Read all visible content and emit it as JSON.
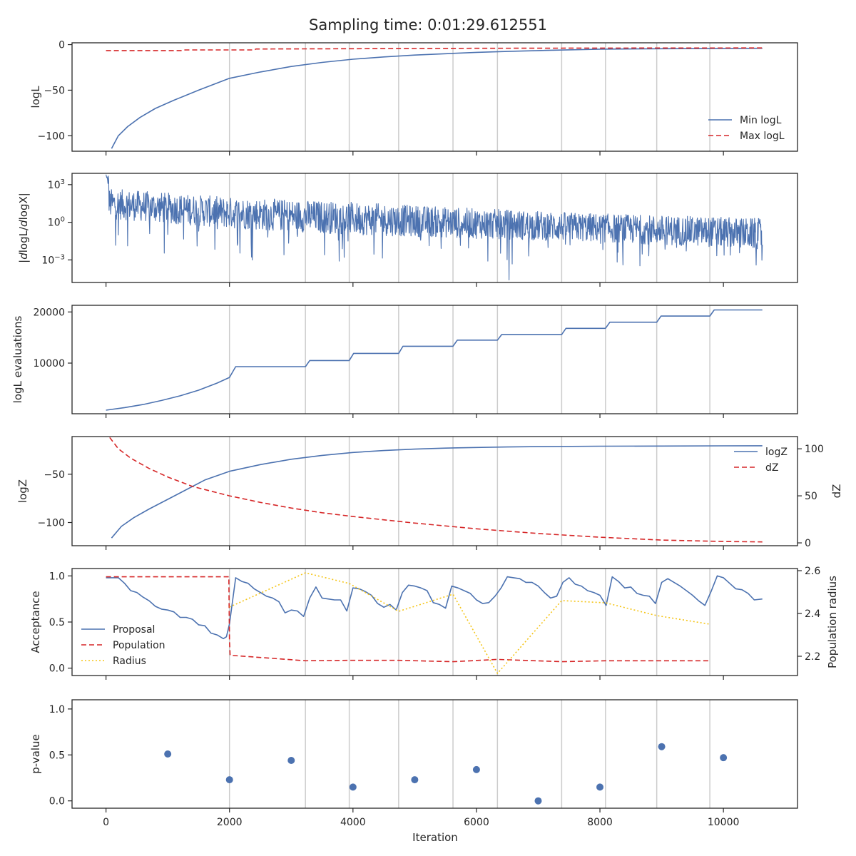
{
  "figure": {
    "title": "Sampling time: 0:01:29.612551",
    "xlabel": "Iteration",
    "xlim": [
      -550,
      11200
    ],
    "xticks": [
      0,
      2000,
      4000,
      6000,
      8000,
      10000
    ],
    "xtick_labels": [
      "0",
      "2000",
      "4000",
      "6000",
      "8000",
      "10000"
    ],
    "vlines_x": [
      2000,
      3230,
      3940,
      4740,
      5620,
      6340,
      7380,
      8090,
      8920,
      9780
    ],
    "colors": {
      "blue": "#4c72b0",
      "red": "#d62728",
      "yellow": "#f5c518",
      "grid": "#cccccc",
      "axis": "#262626"
    }
  },
  "chart_data": [
    {
      "id": "loglikelihood",
      "type": "line",
      "ylabel": "logL",
      "ylim": [
        -117,
        2
      ],
      "yticks": [
        0,
        -50,
        -100
      ],
      "ytick_labels": [
        "0",
        "−50",
        "−100"
      ],
      "legend": {
        "position": "lower-right",
        "entries": [
          "Min logL",
          "Max logL"
        ]
      },
      "series": [
        {
          "name": "Min logL",
          "style": "solid",
          "color": "blue",
          "x": [
            90,
            200,
            350,
            550,
            800,
            1100,
            1500,
            2000,
            2500,
            3000,
            3500,
            4000,
            4500,
            5000,
            5500,
            6000,
            6500,
            7000,
            8000,
            9000,
            10000,
            10630
          ],
          "y": [
            -114,
            -100,
            -90,
            -80,
            -70,
            -61,
            -50,
            -37,
            -30,
            -24,
            -19.5,
            -16,
            -13.5,
            -11.5,
            -10,
            -8.5,
            -7.5,
            -6.5,
            -5,
            -4.5,
            -4.2,
            -4
          ]
        },
        {
          "name": "Max logL",
          "style": "dashed",
          "color": "red",
          "x": [
            0,
            1250,
            1280,
            2400,
            2430,
            4000,
            6000,
            8000,
            10630
          ],
          "y": [
            -6.5,
            -6.5,
            -5.8,
            -5.8,
            -4.8,
            -4.5,
            -4,
            -3.8,
            -3.6
          ]
        }
      ]
    },
    {
      "id": "dlogl",
      "type": "line",
      "ylabel": "|dlogL/dlogX|",
      "yscale": "log",
      "ylim": [
        -4.8,
        3.9
      ],
      "yticks": [
        3,
        0,
        -3
      ],
      "ytick_labels": [
        "10^3",
        "10^0",
        "10^−3"
      ],
      "series": [
        {
          "name": "",
          "style": "noise",
          "color": "blue",
          "x": [
            0,
            2000,
            4000,
            6000,
            8000,
            10000,
            10630
          ],
          "y_upper": [
            2.7,
            2.0,
            1.6,
            1.1,
            0.7,
            0.4,
            0.3
          ],
          "y_lower": [
            0.3,
            -0.5,
            -1.0,
            -1.3,
            -1.6,
            -2.0,
            -2.2
          ],
          "y_dips": [
            -2.5,
            -3.0,
            -3.2,
            -3.4,
            -3.6,
            -3.8,
            -3.9
          ],
          "y_start_peak": 3.8,
          "y_min": -4.6
        }
      ]
    },
    {
      "id": "logl-evaluations",
      "type": "line",
      "ylabel": "logL evaluations",
      "ylim": [
        100,
        21300
      ],
      "yticks": [
        20000,
        10000
      ],
      "ytick_labels": [
        "20000",
        "10000"
      ],
      "series": [
        {
          "name": "",
          "style": "solid",
          "color": "blue",
          "x": [
            0,
            300,
            600,
            900,
            1200,
            1500,
            1800,
            2000,
            2100,
            3230,
            3300,
            3940,
            4010,
            4740,
            4810,
            5620,
            5690,
            6340,
            6410,
            7380,
            7450,
            8090,
            8160,
            8920,
            8990,
            9780,
            9850,
            10630
          ],
          "y": [
            800,
            1300,
            1900,
            2700,
            3600,
            4700,
            6100,
            7200,
            9300,
            9300,
            10500,
            10500,
            11900,
            11900,
            13300,
            13300,
            14500,
            14500,
            15600,
            15600,
            16800,
            16800,
            18000,
            18000,
            19200,
            19200,
            20400,
            20400
          ]
        }
      ]
    },
    {
      "id": "logz",
      "type": "line",
      "ylabel": "logZ",
      "y2label": "dZ",
      "ylim": [
        -124,
        -11
      ],
      "yticks": [
        -50,
        -100
      ],
      "ytick_labels": [
        "−50",
        "−100"
      ],
      "y2lim": [
        -3,
        113
      ],
      "y2ticks": [
        0,
        50,
        100
      ],
      "y2tick_labels": [
        "0",
        "50",
        "100"
      ],
      "legend": {
        "position": "top-right",
        "entries": [
          "logZ",
          "dZ"
        ]
      },
      "series": [
        {
          "name": "logZ",
          "style": "solid",
          "color": "blue",
          "axis": "left",
          "x": [
            90,
            250,
            450,
            700,
            1000,
            1300,
            1600,
            2000,
            2500,
            3000,
            3500,
            4000,
            4500,
            5000,
            5500,
            6000,
            6500,
            7000,
            8000,
            9000,
            10000,
            10630
          ],
          "y": [
            -116,
            -104,
            -95,
            -86,
            -76,
            -66,
            -56,
            -47,
            -40,
            -34.5,
            -30.5,
            -27.5,
            -25.5,
            -24,
            -23,
            -22.3,
            -21.8,
            -21.4,
            -21,
            -20.8,
            -20.6,
            -20.5
          ]
        },
        {
          "name": "dZ",
          "style": "dashed",
          "color": "red",
          "axis": "right",
          "x": [
            60,
            200,
            400,
            700,
            1000,
            1400,
            2000,
            2500,
            3000,
            3500,
            4000,
            5000,
            6000,
            7000,
            8000,
            9000,
            10000,
            10630
          ],
          "y": [
            112,
            100,
            90,
            79,
            70,
            60,
            50,
            43,
            37,
            32,
            28,
            21,
            15,
            10,
            6,
            3,
            1.5,
            1
          ]
        }
      ]
    },
    {
      "id": "acceptance",
      "type": "line",
      "ylabel": "Acceptance",
      "y2label": "Population radius",
      "ylim": [
        -0.08,
        1.08
      ],
      "yticks": [
        0.0,
        0.5,
        1.0
      ],
      "ytick_labels": [
        "0.0",
        "0.5",
        "1.0"
      ],
      "y2lim": [
        2.11,
        2.61
      ],
      "y2ticks": [
        2.2,
        2.4,
        2.6
      ],
      "y2tick_labels": [
        "2.2",
        "2.4",
        "2.6"
      ],
      "legend": {
        "position": "lower-left",
        "entries": [
          "Proposal",
          "Population",
          "Radius"
        ]
      },
      "series": [
        {
          "name": "Proposal",
          "style": "solid",
          "color": "blue",
          "axis": "left",
          "x": [
            0,
            200,
            300,
            400,
            500,
            600,
            700,
            800,
            900,
            1000,
            1100,
            1200,
            1300,
            1400,
            1500,
            1600,
            1700,
            1800,
            1900,
            1950,
            2000,
            2100,
            2200,
            2300,
            2400,
            2500,
            2600,
            2700,
            2800,
            2900,
            3000,
            3100,
            3200,
            3300,
            3400,
            3500,
            3600,
            3700,
            3800,
            3900,
            4000,
            4100,
            4200,
            4300,
            4400,
            4500,
            4600,
            4700,
            4800,
            4900,
            5000,
            5100,
            5200,
            5300,
            5400,
            5500,
            5600,
            5700,
            5800,
            5900,
            6000,
            6100,
            6200,
            6300,
            6400,
            6500,
            6600,
            6700,
            6800,
            6900,
            7000,
            7100,
            7200,
            7300,
            7400,
            7500,
            7600,
            7700,
            7800,
            7900,
            8000,
            8100,
            8200,
            8300,
            8400,
            8500,
            8600,
            8700,
            8800,
            8900,
            9000,
            9100,
            9200,
            9300,
            9400,
            9500,
            9600,
            9700,
            9800,
            9900,
            10000,
            10100,
            10200,
            10300,
            10400,
            10500,
            10630
          ],
          "y": [
            0.98,
            0.98,
            0.92,
            0.84,
            0.82,
            0.77,
            0.73,
            0.67,
            0.64,
            0.63,
            0.61,
            0.55,
            0.55,
            0.53,
            0.47,
            0.46,
            0.38,
            0.36,
            0.32,
            0.34,
            0.48,
            0.98,
            0.94,
            0.92,
            0.86,
            0.82,
            0.78,
            0.76,
            0.72,
            0.6,
            0.63,
            0.62,
            0.56,
            0.76,
            0.88,
            0.76,
            0.75,
            0.74,
            0.74,
            0.62,
            0.87,
            0.86,
            0.83,
            0.79,
            0.7,
            0.66,
            0.69,
            0.63,
            0.82,
            0.9,
            0.89,
            0.87,
            0.84,
            0.71,
            0.69,
            0.65,
            0.89,
            0.87,
            0.84,
            0.81,
            0.74,
            0.7,
            0.71,
            0.78,
            0.87,
            0.99,
            0.98,
            0.97,
            0.93,
            0.93,
            0.89,
            0.82,
            0.76,
            0.78,
            0.93,
            0.98,
            0.91,
            0.89,
            0.84,
            0.82,
            0.79,
            0.68,
            0.99,
            0.94,
            0.87,
            0.88,
            0.81,
            0.79,
            0.78,
            0.7,
            0.93,
            0.97,
            0.93,
            0.89,
            0.84,
            0.79,
            0.73,
            0.68,
            0.83,
            1.0,
            0.98,
            0.92,
            0.86,
            0.85,
            0.81,
            0.74,
            0.75
          ]
        },
        {
          "name": "Population",
          "style": "dashed",
          "color": "red",
          "axis": "left",
          "x": [
            0,
            1990,
            2000,
            2010,
            3230,
            3940,
            4740,
            5620,
            6340,
            7380,
            8090,
            8920,
            9780
          ],
          "y": [
            0.99,
            0.99,
            0.3,
            0.14,
            0.08,
            0.085,
            0.085,
            0.07,
            0.095,
            0.07,
            0.08,
            0.08,
            0.08
          ]
        },
        {
          "name": "Radius",
          "style": "dotted",
          "color": "yellow",
          "axis": "right",
          "x": [
            2000,
            3230,
            3940,
            4740,
            5620,
            6340,
            7380,
            8090,
            8920,
            9780
          ],
          "y": [
            2.43,
            2.59,
            2.54,
            2.41,
            2.49,
            2.12,
            2.46,
            2.45,
            2.39,
            2.35
          ]
        }
      ]
    },
    {
      "id": "p-value",
      "type": "scatter",
      "ylabel": "p-value",
      "ylim": [
        -0.08,
        1.1
      ],
      "yticks": [
        0.0,
        0.5,
        1.0
      ],
      "ytick_labels": [
        "0.0",
        "0.5",
        "1.0"
      ],
      "series": [
        {
          "name": "",
          "style": "points",
          "color": "blue",
          "x": [
            1000,
            2000,
            3000,
            4000,
            5000,
            6000,
            7000,
            8000,
            9000,
            10000
          ],
          "y": [
            0.51,
            0.23,
            0.44,
            0.15,
            0.23,
            0.34,
            0.0,
            0.15,
            0.59,
            0.47
          ]
        }
      ]
    }
  ]
}
